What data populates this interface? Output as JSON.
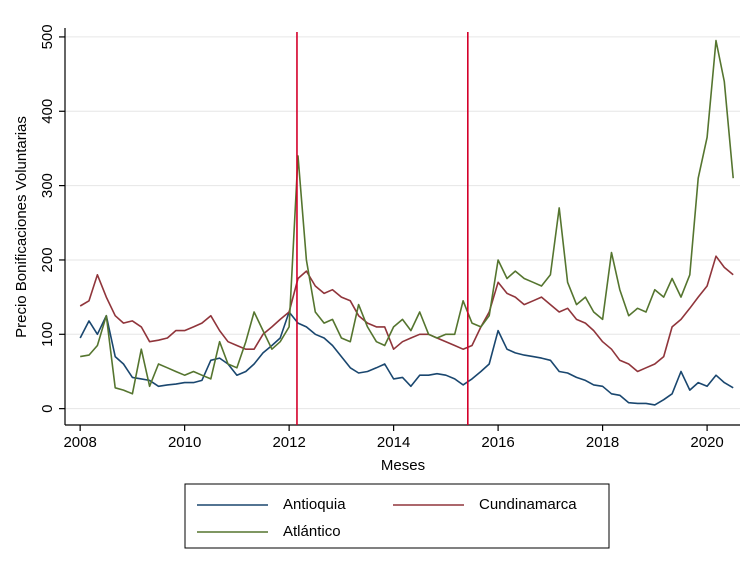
{
  "chart_data": {
    "type": "line",
    "x_label": "Meses",
    "y_label": "Precio Bonificaciones Voluntarias",
    "x": [
      2008.0,
      2008.17,
      2008.33,
      2008.5,
      2008.67,
      2008.83,
      2009.0,
      2009.17,
      2009.33,
      2009.5,
      2009.67,
      2009.83,
      2010.0,
      2010.17,
      2010.33,
      2010.5,
      2010.67,
      2010.83,
      2011.0,
      2011.17,
      2011.33,
      2011.5,
      2011.67,
      2011.83,
      2012.0,
      2012.17,
      2012.33,
      2012.5,
      2012.67,
      2012.83,
      2013.0,
      2013.17,
      2013.33,
      2013.5,
      2013.67,
      2013.83,
      2014.0,
      2014.17,
      2014.33,
      2014.5,
      2014.67,
      2014.83,
      2015.0,
      2015.17,
      2015.33,
      2015.5,
      2015.67,
      2015.83,
      2016.0,
      2016.17,
      2016.33,
      2016.5,
      2016.67,
      2016.83,
      2017.0,
      2017.17,
      2017.33,
      2017.5,
      2017.67,
      2017.83,
      2018.0,
      2018.17,
      2018.33,
      2018.5,
      2018.67,
      2018.83,
      2019.0,
      2019.17,
      2019.33,
      2019.5,
      2019.67,
      2019.83,
      2020.0,
      2020.17,
      2020.33,
      2020.5
    ],
    "series": [
      {
        "name": "Antioquia",
        "color": "#1a476f",
        "values": [
          95,
          118,
          100,
          125,
          70,
          60,
          42,
          40,
          38,
          30,
          32,
          33,
          35,
          35,
          38,
          65,
          68,
          60,
          45,
          50,
          60,
          75,
          85,
          95,
          130,
          115,
          110,
          100,
          95,
          85,
          70,
          55,
          48,
          50,
          55,
          60,
          40,
          42,
          30,
          45,
          45,
          47,
          45,
          40,
          32,
          40,
          50,
          60,
          105,
          80,
          75,
          72,
          70,
          68,
          65,
          50,
          48,
          42,
          38,
          32,
          30,
          20,
          18,
          8,
          7,
          7,
          5,
          12,
          20,
          50,
          25,
          35,
          30,
          45,
          35,
          28
        ]
      },
      {
        "name": "Cundinamarca",
        "color": "#90353b",
        "values": [
          138,
          145,
          180,
          150,
          125,
          115,
          118,
          110,
          90,
          92,
          95,
          105,
          105,
          110,
          115,
          125,
          105,
          90,
          85,
          80,
          80,
          100,
          110,
          120,
          130,
          175,
          185,
          165,
          155,
          160,
          150,
          145,
          125,
          115,
          110,
          110,
          80,
          90,
          95,
          100,
          100,
          95,
          90,
          85,
          80,
          85,
          110,
          130,
          170,
          155,
          150,
          140,
          145,
          150,
          140,
          130,
          135,
          120,
          115,
          105,
          90,
          80,
          65,
          60,
          50,
          55,
          60,
          70,
          110,
          120,
          135,
          150,
          165,
          205,
          190,
          180
        ]
      },
      {
        "name": "Atlántico",
        "color": "#55752f",
        "values": [
          70,
          72,
          85,
          125,
          28,
          25,
          20,
          80,
          30,
          60,
          55,
          50,
          45,
          50,
          45,
          40,
          90,
          60,
          55,
          90,
          130,
          105,
          80,
          90,
          110,
          340,
          200,
          130,
          115,
          120,
          95,
          90,
          140,
          110,
          90,
          85,
          110,
          120,
          105,
          130,
          100,
          95,
          100,
          100,
          145,
          115,
          110,
          125,
          200,
          175,
          185,
          175,
          170,
          165,
          180,
          270,
          170,
          140,
          150,
          130,
          120,
          210,
          160,
          125,
          135,
          130,
          160,
          150,
          175,
          150,
          180,
          310,
          365,
          495,
          440,
          310
        ]
      }
    ],
    "vlines": [
      2012.15,
      2015.42
    ],
    "vline_color": "#d4002a",
    "xlim": [
      2007.71,
      2020.63
    ],
    "xticks": [
      2008,
      2010,
      2012,
      2014,
      2016,
      2018,
      2020
    ],
    "ylim": [
      -22,
      512
    ],
    "yticks": [
      0,
      100,
      200,
      300,
      400,
      500
    ],
    "grid": true,
    "legend": "bottom"
  }
}
